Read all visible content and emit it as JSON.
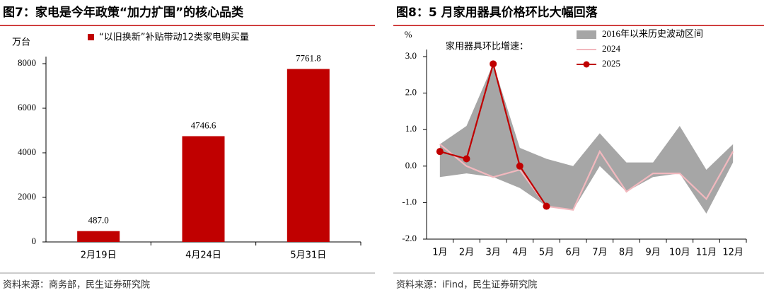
{
  "chart_data": [
    {
      "type": "bar",
      "title": "图7：家电是今年政策“加力扩围”的核心品类",
      "y_label": "万台",
      "source": "资料来源：商务部，民生证券研究院",
      "categories": [
        "2月19日",
        "4月24日",
        "5月31日"
      ],
      "series": [
        {
          "name": "“以旧换新”补贴带动12类家电购买量",
          "color": "#c00000",
          "values": [
            487.0,
            4746.6,
            7761.8
          ],
          "value_labels": [
            "487.0",
            "4746.6",
            "7761.8"
          ]
        }
      ],
      "ylim": [
        0,
        8000
      ],
      "yticks": [
        0,
        2000,
        4000,
        6000,
        8000
      ]
    },
    {
      "type": "line",
      "title": "图8：5 月家用器具价格环比大幅回落",
      "y_label": "%",
      "annotation": "家用器具环比增速：",
      "source": "资料来源：iFind，民生证券研究院",
      "categories": [
        "1月",
        "2月",
        "3月",
        "4月",
        "5月",
        "6月",
        "7月",
        "8月",
        "9月",
        "10月",
        "11月",
        "12月"
      ],
      "band": {
        "name": "2016年以来历史波动区间",
        "color": "#a6a6a6",
        "high": [
          0.6,
          1.1,
          2.8,
          0.5,
          0.2,
          0.0,
          0.9,
          0.1,
          0.1,
          1.1,
          -0.1,
          0.6
        ],
        "low": [
          -0.3,
          -0.2,
          -0.3,
          -0.6,
          -1.1,
          -1.2,
          0.0,
          -0.7,
          -0.3,
          -0.2,
          -1.3,
          0.1
        ]
      },
      "series": [
        {
          "name": "2024",
          "color": "#f2b8be",
          "values": [
            0.6,
            0.0,
            -0.3,
            -0.1,
            -1.1,
            -1.2,
            0.4,
            -0.7,
            -0.2,
            -0.2,
            -0.9,
            0.4
          ]
        },
        {
          "name": "2025",
          "color": "#c00000",
          "marker": true,
          "values": [
            0.4,
            0.2,
            2.8,
            0.0,
            -1.1,
            null,
            null,
            null,
            null,
            null,
            null,
            null
          ]
        }
      ],
      "ylim": [
        -2,
        3
      ],
      "yticks": [
        {
          "value": -2,
          "label": "-2.0"
        },
        {
          "value": -1,
          "label": "-1.0"
        },
        {
          "value": 0,
          "label": "0.0"
        },
        {
          "value": 1,
          "label": "1.0"
        },
        {
          "value": 2,
          "label": "2.0"
        },
        {
          "value": 3,
          "label": "3.0"
        }
      ]
    }
  ]
}
